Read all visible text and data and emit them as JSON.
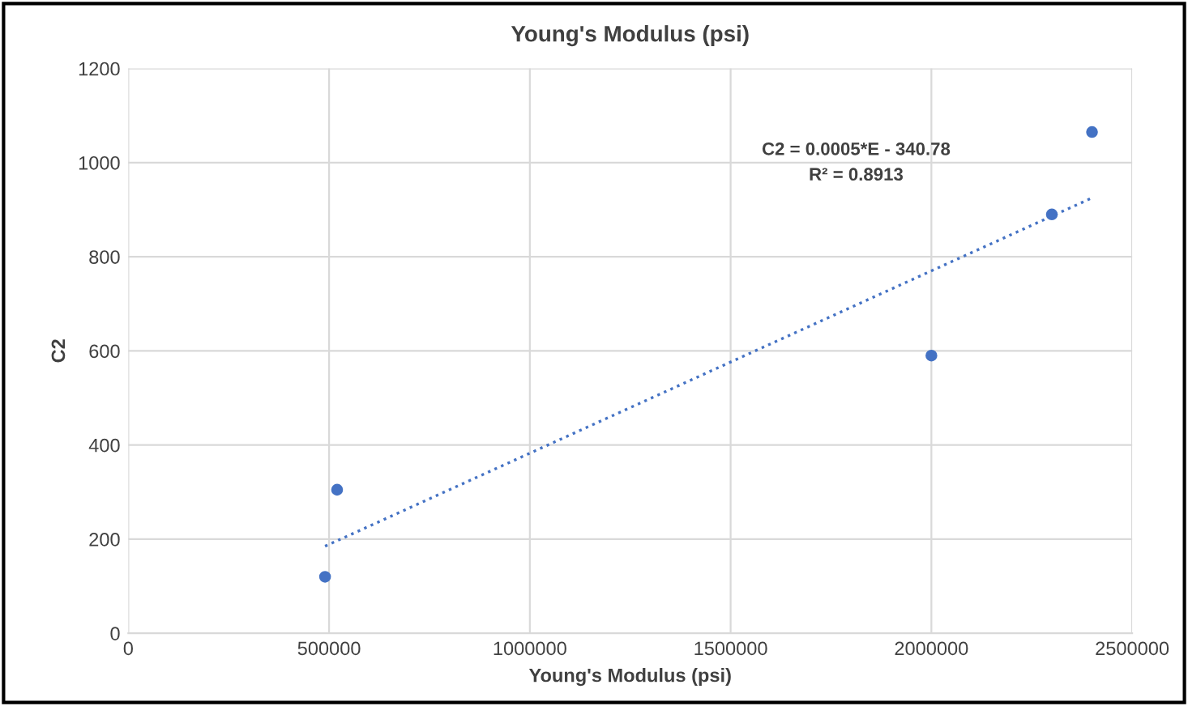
{
  "chart_data": {
    "type": "scatter",
    "title": "Young's Modulus (psi)",
    "xlabel": "Young's Modulus (psi)",
    "ylabel": "C2",
    "x": [
      490000,
      520000,
      2000000,
      2300000,
      2400000
    ],
    "values": [
      120,
      305,
      590,
      890,
      1065
    ],
    "color": "#4472c4",
    "marker": "circle",
    "series": [
      {
        "type": "line",
        "x": [
          490000,
          2400000
        ],
        "values": [
          185,
          925
        ],
        "color": "#4472c4",
        "line_style": "dotted",
        "marker": "none"
      }
    ],
    "annotations": [
      "C2 = 0.0005*E - 340.78",
      "R² = 0.8913"
    ],
    "xlim": [
      0,
      2500000
    ],
    "xticks": [
      0,
      500000,
      1000000,
      1500000,
      2000000,
      2500000
    ],
    "ylim": [
      0,
      1200
    ],
    "yticks": [
      0,
      200,
      400,
      600,
      800,
      1000,
      1200
    ],
    "grid": true
  }
}
